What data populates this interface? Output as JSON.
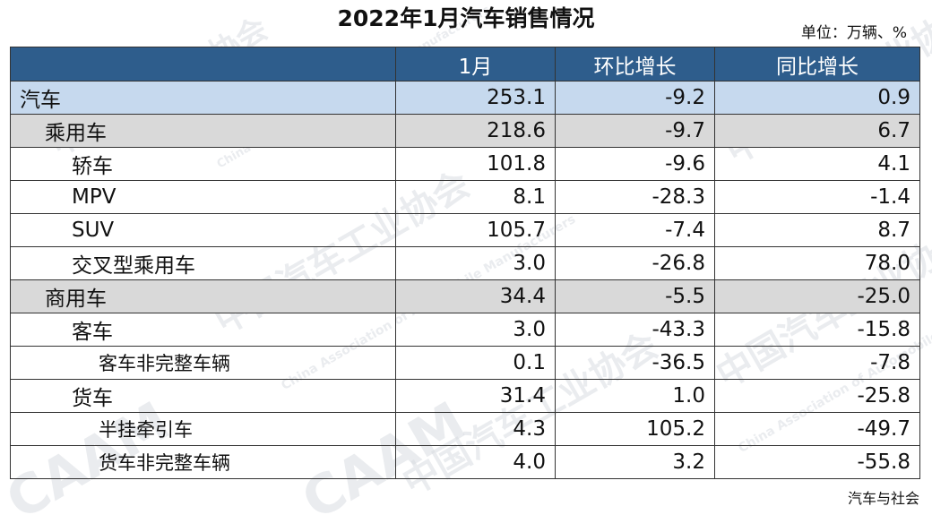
{
  "title": "2022年1月汽车销售情况",
  "unit": "单位：万辆、%",
  "headers": [
    "",
    "1月",
    "环比增长",
    "同比增长"
  ],
  "rows": [
    {
      "label": "汽车",
      "level": 0,
      "jan": "253.1",
      "mom": "-9.2",
      "yoy": "0.9"
    },
    {
      "label": "乘用车",
      "level": 1,
      "jan": "218.6",
      "mom": "-9.7",
      "yoy": "6.7"
    },
    {
      "label": "轿车",
      "level": 2,
      "jan": "101.8",
      "mom": "-9.6",
      "yoy": "4.1"
    },
    {
      "label": "MPV",
      "level": 2,
      "jan": "8.1",
      "mom": "-28.3",
      "yoy": "-1.4"
    },
    {
      "label": "SUV",
      "level": 2,
      "jan": "105.7",
      "mom": "-7.4",
      "yoy": "8.7"
    },
    {
      "label": "交叉型乘用车",
      "level": 2,
      "jan": "3.0",
      "mom": "-26.8",
      "yoy": "78.0"
    },
    {
      "label": "商用车",
      "level": 1,
      "jan": "34.4",
      "mom": "-5.5",
      "yoy": "-25.0"
    },
    {
      "label": "客车",
      "level": 2,
      "jan": "3.0",
      "mom": "-43.3",
      "yoy": "-15.8"
    },
    {
      "label": "客车非完整车辆",
      "level": 3,
      "jan": "0.1",
      "mom": "-36.5",
      "yoy": "-7.8"
    },
    {
      "label": "货车",
      "level": 2,
      "jan": "31.4",
      "mom": "1.0",
      "yoy": "-25.8"
    },
    {
      "label": "半挂牵引车",
      "level": 3,
      "jan": "4.3",
      "mom": "105.2",
      "yoy": "-49.7"
    },
    {
      "label": "货车非完整车辆",
      "level": 3,
      "jan": "4.0",
      "mom": "3.2",
      "yoy": "-55.8"
    }
  ],
  "watermark": {
    "brand": "CAAM",
    "cn": "中国汽车工业协会",
    "en": "China Association of Automobile Manufacturers"
  },
  "source": "汽车与社会",
  "colors": {
    "header_bg": "#2e5d8c",
    "total_row_bg": "#c6d9ee",
    "subtotal_row_bg": "#d9d9d9"
  }
}
